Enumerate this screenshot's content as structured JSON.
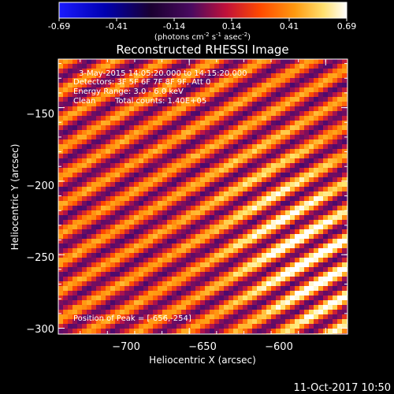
{
  "colorbar": {
    "tick_labels": [
      "-0.69",
      "-0.41",
      "-0.14",
      "0.14",
      "0.41",
      "0.69"
    ],
    "units": {
      "prefix": "(photons cm",
      "exp1": "-2",
      "mid1": " s",
      "exp2": "-1",
      "mid2": " asec",
      "exp3": "-2",
      "suffix": ")"
    },
    "range": [
      -0.69,
      0.69
    ],
    "colormap": "black-purple-red-orange-yellow-white (RHESSI standard)"
  },
  "chart_data": {
    "type": "heatmap",
    "title": "Reconstructed RHESSI Image",
    "xlabel": "Heliocentric X (arcsec)",
    "ylabel": "Heliocentric Y (arcsec)",
    "xlim": [
      -748,
      -642
    ],
    "ylim": [
      -304,
      -117
    ],
    "x_ticks": [
      -700,
      -650,
      -600
    ],
    "y_ticks": [
      -300,
      -250,
      -200,
      -150
    ],
    "x_tick_labels": [
      "−700",
      "−650",
      "−600"
    ],
    "y_tick_labels": [
      "−300",
      "−250",
      "−200",
      "−150"
    ],
    "peak": [
      -656,
      -254
    ],
    "fringe_pattern": {
      "description": "diagonal interference fringes from upper-left to lower-right with bright center near peak",
      "period_arcsec": 9,
      "angle_deg": 30
    },
    "annotations": {
      "time_range": "3-May-2015 14:05:20.000 to 14:15:20.000",
      "detectors": "Detectors: 3F 5F 6F 7F 8F 9F, Att 0",
      "energy": "Energy Range: 3.0 - 6.0 keV",
      "method": "Clean",
      "counts": "Total counts: 1.40E+05",
      "peak_label": "Position of Peak = [-656,-254]"
    }
  },
  "footer": {
    "timestamp": "11-Oct-2017 10:50"
  }
}
